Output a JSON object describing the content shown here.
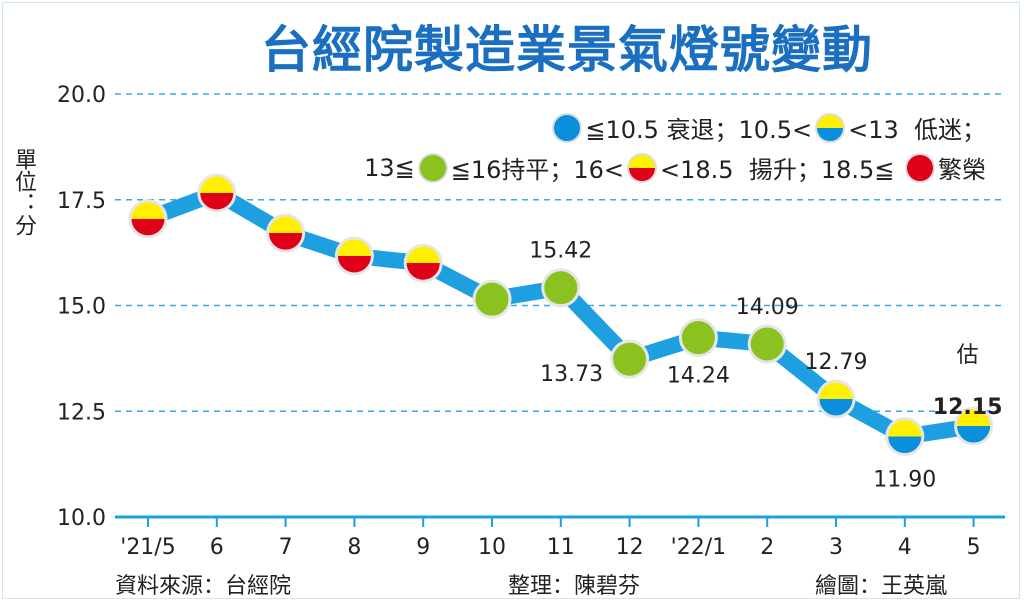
{
  "title": "台經院製造業景氣燈號變動",
  "unit_label": "單位：分",
  "legend": {
    "line1": [
      {
        "icon": "blue",
        "text": "≦10.5 衰退；10.5<"
      },
      {
        "icon": "yellow-blue",
        "text": "<13  低迷；"
      }
    ],
    "line2": [
      {
        "prefix": "13≦",
        "icon": "green",
        "text": "≦16持平；16<"
      },
      {
        "icon": "yellow-red",
        "text": "<18.5  揚升；18.5≦ "
      },
      {
        "icon": "red",
        "text": "繁榮"
      }
    ]
  },
  "footer": {
    "source": "資料來源：台經院",
    "editor": "整理：陳碧芬",
    "graphic": "繪圖：王英嵐"
  },
  "colors": {
    "title": "#1a6fc0",
    "line": "#1ea0e0",
    "grid": "#3aa8e0",
    "blue": "#0a8fdc",
    "yellow": "#fff000",
    "red": "#e0001a",
    "green": "#8cc21f"
  },
  "chart_data": {
    "type": "line",
    "categories": [
      "'21/5",
      "6",
      "7",
      "8",
      "9",
      "10",
      "11",
      "12",
      "'22/1",
      "2",
      "3",
      "4",
      "5"
    ],
    "values": [
      17.05,
      17.66,
      16.71,
      16.17,
      16.0,
      15.15,
      15.42,
      13.73,
      14.24,
      14.09,
      12.79,
      11.9,
      12.15
    ],
    "signals": [
      "yellow-red",
      "yellow-red",
      "yellow-red",
      "yellow-red",
      "yellow-red",
      "green",
      "green",
      "green",
      "green",
      "green",
      "yellow-blue",
      "yellow-blue",
      "yellow-blue"
    ],
    "data_labels": [
      null,
      null,
      null,
      null,
      null,
      null,
      "15.42",
      "13.73",
      "14.24",
      "14.09",
      "12.79",
      "11.90",
      "12.15"
    ],
    "estimate_note": "估",
    "ylim": [
      10,
      20
    ],
    "yticks": [
      "10.0",
      "12.5",
      "15.0",
      "17.5",
      "20.0"
    ],
    "ytick_values": [
      10,
      12.5,
      15,
      17.5,
      20
    ],
    "grid": true,
    "legend_position": "top-right"
  }
}
